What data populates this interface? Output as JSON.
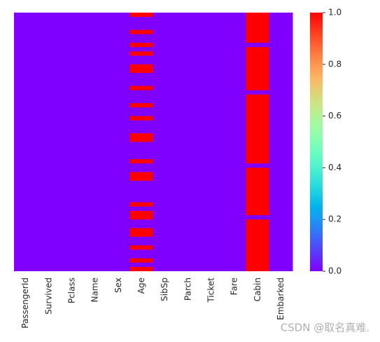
{
  "chart_data": {
    "type": "heatmap",
    "categories": [
      "PassengerId",
      "Survived",
      "Pclass",
      "Name",
      "Sex",
      "Age",
      "SibSp",
      "Parch",
      "Ticket",
      "Fare",
      "Cabin",
      "Embarked"
    ],
    "colormap": "rainbow",
    "clim": [
      0,
      1
    ],
    "cticks": [
      {
        "value": 0,
        "label": "0.0"
      },
      {
        "value": 0.2,
        "label": "0.2"
      },
      {
        "value": 0.4,
        "label": "0.4"
      },
      {
        "value": 0.6,
        "label": "0.6"
      },
      {
        "value": 0.8,
        "label": "0.8"
      },
      {
        "value": 1,
        "label": "1.0"
      }
    ],
    "z": [
      [
        0,
        0,
        0,
        0,
        0,
        1,
        0,
        0,
        0,
        0,
        1,
        0
      ],
      [
        0,
        0,
        0,
        0,
        0,
        0,
        0,
        0,
        0,
        0,
        1,
        0
      ],
      [
        0,
        0,
        0,
        0,
        0,
        0,
        0,
        0,
        0,
        0,
        1,
        0
      ],
      [
        0,
        0,
        0,
        0,
        0,
        0,
        0,
        0,
        0,
        0,
        1,
        0
      ],
      [
        0,
        0,
        0,
        0,
        0,
        1,
        0,
        0,
        0,
        0,
        1,
        0
      ],
      [
        0,
        0,
        0,
        0,
        0,
        0,
        0,
        0,
        0,
        0,
        1,
        0
      ],
      [
        0,
        0,
        0,
        0,
        0,
        0,
        0,
        0,
        0,
        0,
        1,
        0
      ],
      [
        0,
        0,
        0,
        0,
        0,
        1,
        0,
        0,
        0,
        0,
        0,
        0
      ],
      [
        0,
        0,
        0,
        0,
        0,
        0,
        0,
        0,
        0,
        0,
        1,
        0
      ],
      [
        0,
        0,
        0,
        0,
        0,
        1,
        0,
        0,
        0,
        0,
        1,
        0
      ],
      [
        0,
        0,
        0,
        0,
        0,
        0,
        0,
        0,
        0,
        0,
        1,
        0
      ],
      [
        0,
        0,
        0,
        0,
        0,
        0,
        0,
        0,
        0,
        0,
        1,
        0
      ],
      [
        0,
        0,
        0,
        0,
        0,
        1,
        0,
        0,
        0,
        0,
        1,
        0
      ],
      [
        0,
        0,
        0,
        0,
        0,
        1,
        0,
        0,
        0,
        0,
        1,
        0
      ],
      [
        0,
        0,
        0,
        0,
        0,
        0,
        0,
        0,
        0,
        0,
        1,
        0
      ],
      [
        0,
        0,
        0,
        0,
        0,
        0,
        0,
        0,
        0,
        0,
        1,
        0
      ],
      [
        0,
        0,
        0,
        0,
        0,
        0,
        0,
        0,
        0,
        0,
        1,
        0
      ],
      [
        0,
        0,
        0,
        0,
        0,
        1,
        0,
        0,
        0,
        0,
        1,
        0
      ],
      [
        0,
        0,
        0,
        0,
        0,
        0,
        0,
        0,
        0,
        0,
        0,
        0
      ],
      [
        0,
        0,
        0,
        0,
        0,
        0,
        0,
        0,
        0,
        0,
        1,
        0
      ],
      [
        0,
        0,
        0,
        0,
        0,
        0,
        0,
        0,
        0,
        0,
        1,
        0
      ],
      [
        0,
        0,
        0,
        0,
        0,
        1,
        0,
        0,
        0,
        0,
        1,
        0
      ],
      [
        0,
        0,
        0,
        0,
        0,
        0,
        0,
        0,
        0,
        0,
        1,
        0
      ],
      [
        0,
        0,
        0,
        0,
        0,
        0,
        0,
        0,
        0,
        0,
        1,
        0
      ],
      [
        0,
        0,
        0,
        0,
        0,
        1,
        0,
        0,
        0,
        0,
        1,
        0
      ],
      [
        0,
        0,
        0,
        0,
        0,
        0,
        0,
        0,
        0,
        0,
        1,
        0
      ],
      [
        0,
        0,
        0,
        0,
        0,
        0,
        0,
        0,
        0,
        0,
        1,
        0
      ],
      [
        0,
        0,
        0,
        0,
        0,
        0,
        0,
        0,
        0,
        0,
        1,
        0
      ],
      [
        0,
        0,
        0,
        0,
        0,
        1,
        0,
        0,
        0,
        0,
        1,
        0
      ],
      [
        0,
        0,
        0,
        0,
        0,
        1,
        0,
        0,
        0,
        0,
        1,
        0
      ],
      [
        0,
        0,
        0,
        0,
        0,
        0,
        0,
        0,
        0,
        0,
        1,
        0
      ],
      [
        0,
        0,
        0,
        0,
        0,
        0,
        0,
        0,
        0,
        0,
        1,
        0
      ],
      [
        0,
        0,
        0,
        0,
        0,
        0,
        0,
        0,
        0,
        0,
        1,
        0
      ],
      [
        0,
        0,
        0,
        0,
        0,
        0,
        0,
        0,
        0,
        0,
        1,
        0
      ],
      [
        0,
        0,
        0,
        0,
        0,
        1,
        0,
        0,
        0,
        0,
        1,
        0
      ],
      [
        0,
        0,
        0,
        0,
        0,
        0,
        0,
        0,
        0,
        0,
        0,
        0
      ],
      [
        0,
        0,
        0,
        0,
        0,
        0,
        0,
        0,
        0,
        0,
        1,
        0
      ],
      [
        0,
        0,
        0,
        0,
        0,
        1,
        0,
        0,
        0,
        0,
        1,
        0
      ],
      [
        0,
        0,
        0,
        0,
        0,
        1,
        0,
        0,
        0,
        0,
        1,
        0
      ],
      [
        0,
        0,
        0,
        0,
        0,
        0,
        0,
        0,
        0,
        0,
        1,
        0
      ],
      [
        0,
        0,
        0,
        0,
        0,
        0,
        0,
        0,
        0,
        0,
        1,
        0
      ],
      [
        0,
        0,
        0,
        0,
        0,
        0,
        0,
        0,
        0,
        0,
        1,
        0
      ],
      [
        0,
        0,
        0,
        0,
        0,
        0,
        0,
        0,
        0,
        0,
        1,
        0
      ],
      [
        0,
        0,
        0,
        0,
        0,
        0,
        0,
        0,
        0,
        0,
        1,
        0
      ],
      [
        0,
        0,
        0,
        0,
        0,
        1,
        0,
        0,
        0,
        0,
        1,
        0
      ],
      [
        0,
        0,
        0,
        0,
        0,
        0,
        0,
        0,
        0,
        0,
        1,
        0
      ],
      [
        0,
        0,
        0,
        0,
        0,
        1,
        0,
        0,
        0,
        0,
        1,
        0
      ],
      [
        0,
        0,
        0,
        0,
        0,
        1,
        0,
        0,
        0,
        0,
        0,
        0
      ],
      [
        0,
        0,
        0,
        0,
        0,
        0,
        0,
        0,
        0,
        0,
        1,
        0
      ],
      [
        0,
        0,
        0,
        0,
        0,
        0,
        0,
        0,
        0,
        0,
        1,
        0
      ],
      [
        0,
        0,
        0,
        0,
        0,
        1,
        0,
        0,
        0,
        0,
        1,
        0
      ],
      [
        0,
        0,
        0,
        0,
        0,
        1,
        0,
        0,
        0,
        0,
        1,
        0
      ],
      [
        0,
        0,
        0,
        0,
        0,
        0,
        0,
        0,
        0,
        0,
        1,
        0
      ],
      [
        0,
        0,
        0,
        0,
        0,
        0,
        0,
        0,
        0,
        0,
        1,
        0
      ],
      [
        0,
        0,
        0,
        0,
        0,
        1,
        0,
        0,
        0,
        0,
        1,
        0
      ],
      [
        0,
        0,
        0,
        0,
        0,
        0,
        0,
        0,
        0,
        0,
        1,
        0
      ],
      [
        0,
        0,
        0,
        0,
        0,
        0,
        0,
        0,
        0,
        0,
        1,
        0
      ],
      [
        0,
        0,
        0,
        0,
        0,
        1,
        0,
        0,
        0,
        0,
        1,
        0
      ],
      [
        0,
        0,
        0,
        0,
        0,
        0,
        0,
        0,
        0,
        0,
        1,
        0
      ],
      [
        0,
        0,
        0,
        0,
        0,
        1,
        0,
        0,
        0,
        0,
        1,
        0
      ]
    ],
    "watermark": "CSDN @取名真难."
  }
}
